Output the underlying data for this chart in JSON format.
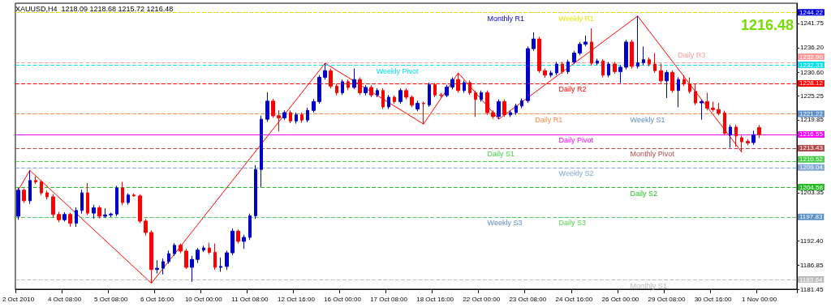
{
  "chart_data": {
    "type": "candlestick",
    "title": "XAUUSD,H4  1218.09 1218.68 1215.72 1216.48",
    "annotations": [
      "1216.48",
      "1244.22",
      "1232.90",
      "1232.33",
      "1228.12",
      "1221.22",
      "1216.55",
      "1213.43",
      "1210.52",
      "1209.04",
      "1204.58",
      "1197.83",
      "1183.64"
    ],
    "categories": [
      "2 Oct 2010",
      null,
      null,
      null,
      null,
      null,
      null,
      null,
      "4 Oct 08:00",
      null,
      null,
      null,
      null,
      null,
      null,
      null,
      "5 Oct 08:00",
      null,
      null,
      null,
      null,
      null,
      null,
      null,
      "6 Oct 16:00",
      null,
      null,
      null,
      null,
      null,
      null,
      null,
      "10 Oct 00:00",
      null,
      null,
      null,
      null,
      null,
      null,
      null,
      "11 Oct 08:00",
      null,
      null,
      null,
      null,
      null,
      null,
      null,
      "12 Oct 16:00",
      null,
      null,
      null,
      null,
      null,
      null,
      null,
      "16 Oct 00:00",
      null,
      null,
      null,
      null,
      null,
      null,
      null,
      "17 Oct 08:00",
      null,
      null,
      null,
      null,
      null,
      null,
      null,
      "18 Oct 16:00",
      null,
      null,
      null,
      null,
      null,
      null,
      null,
      "22 Oct 00:00",
      null,
      null,
      null,
      null,
      null,
      null,
      null,
      "23 Oct 08:00",
      null,
      null,
      null,
      null,
      null,
      null,
      null,
      "24 Oct 16:00",
      null,
      null,
      null,
      null,
      null,
      null,
      null,
      "26 Oct 00:00",
      null,
      null,
      null,
      null,
      null,
      null,
      null,
      "29 Oct 08:00",
      null,
      null,
      null,
      null,
      null,
      null,
      null,
      "30 Oct 16:00",
      null,
      null,
      null,
      null,
      null,
      null,
      null,
      "1 Nov 00:00",
      null,
      null,
      null,
      null,
      null,
      null
    ],
    "ylim": [
      1181.45,
      1246.3
    ],
    "yticks": [
      1181.45,
      1186.85,
      {
        "value": 1192.4,
        "label": "1192.40"
      },
      1203.35,
      1219.85,
      1225.25,
      {
        "value": 1230.6,
        "label": "1230.60"
      },
      {
        "value": 1236.2,
        "label": "1236.20"
      },
      1241.75
    ],
    "grid": false,
    "series": [
      {
        "ohlc": [
          [
            1198,
            1204.4,
            1197.2,
            1203.9
          ],
          [
            1203.9,
            1204.3,
            1201,
            1201.5
          ],
          [
            1201.5,
            1208.4,
            1200.8,
            1206.1
          ],
          [
            1206.1,
            1207,
            1205.3,
            1205.8
          ],
          [
            1205.8,
            1206.2,
            1202.8,
            1203.3
          ],
          [
            1203.3,
            1203.8,
            1201.8,
            1202.4
          ],
          [
            1202.4,
            1203,
            1197.6,
            1198.4
          ],
          [
            1198.4,
            1199,
            1196.6,
            1197.2
          ],
          [
            1197.2,
            1198.9,
            1196.8,
            1198.4
          ],
          [
            1198.4,
            1198.8,
            1195.6,
            1196.4
          ],
          [
            1196.4,
            1200,
            1195.6,
            1199.3
          ],
          [
            1199.3,
            1204,
            1198.6,
            1203.3
          ],
          [
            1203.3,
            1205.5,
            1198.2,
            1198.7
          ],
          [
            1198.7,
            1200.6,
            1197.4,
            1199.9
          ],
          [
            1199.9,
            1200.4,
            1197.5,
            1198
          ],
          [
            1198,
            1199.8,
            1197.6,
            1198.3
          ],
          [
            1198.3,
            1198.8,
            1197.8,
            1198.5
          ],
          [
            1198.5,
            1204.9,
            1198,
            1204.4
          ],
          [
            1204.4,
            1205.8,
            1200.5,
            1201.1
          ],
          [
            1201.1,
            1203.2,
            1200.6,
            1202.8
          ],
          [
            1202.8,
            1203.2,
            1202.4,
            1202.6
          ],
          [
            1202.6,
            1203,
            1196.4,
            1196.9
          ],
          [
            1196.9,
            1197.4,
            1193.6,
            1194.3
          ],
          [
            1194.3,
            1194.8,
            1182.8,
            1185.9
          ],
          [
            1185.9,
            1188,
            1185,
            1186.2
          ],
          [
            1186.2,
            1188.4,
            1184.8,
            1187.7
          ],
          [
            1187.7,
            1190.2,
            1187.2,
            1189.5
          ],
          [
            1189.5,
            1191.9,
            1189,
            1191.4
          ],
          [
            1191.4,
            1191.8,
            1189.6,
            1190.1
          ],
          [
            1190.1,
            1190.6,
            1186,
            1186.4
          ],
          [
            1186.4,
            1189,
            1183.1,
            1188.2
          ],
          [
            1188.2,
            1190.8,
            1187.4,
            1190.3
          ],
          [
            1190.3,
            1191.3,
            1189.9,
            1190.8
          ],
          [
            1190.8,
            1192,
            1189.4,
            1189.8
          ],
          [
            1189.8,
            1191.8,
            1185.8,
            1186.4
          ],
          [
            1186.4,
            1188.6,
            1185.4,
            1186.6
          ],
          [
            1186.6,
            1190.2,
            1185.8,
            1189.7
          ],
          [
            1189.7,
            1195.2,
            1189.2,
            1194.6
          ],
          [
            1194.6,
            1195,
            1191.8,
            1192.3
          ],
          [
            1192.3,
            1193.8,
            1190.6,
            1193.2
          ],
          [
            1193.2,
            1198.6,
            1192.6,
            1198.1
          ],
          [
            1198.1,
            1209.6,
            1197.4,
            1208.6
          ],
          [
            1208.6,
            1220.8,
            1204.6,
            1220
          ],
          [
            1220,
            1226.1,
            1219.4,
            1224.1
          ],
          [
            1224.1,
            1224.6,
            1220.3,
            1220.8
          ],
          [
            1220.8,
            1222,
            1217.2,
            1220.3
          ],
          [
            1220.3,
            1222,
            1219.8,
            1221.5
          ],
          [
            1221.5,
            1222,
            1219.1,
            1219.6
          ],
          [
            1219.6,
            1221.5,
            1219,
            1221
          ],
          [
            1221,
            1221.5,
            1219.2,
            1219.8
          ],
          [
            1219.8,
            1222.6,
            1219.3,
            1222
          ],
          [
            1222,
            1224.6,
            1221.5,
            1224
          ],
          [
            1224,
            1230,
            1223.5,
            1229.5
          ],
          [
            1229.5,
            1232.7,
            1229,
            1231
          ],
          [
            1231,
            1231.5,
            1227,
            1227.5
          ],
          [
            1227.5,
            1228,
            1225.4,
            1226
          ],
          [
            1226,
            1229,
            1225.5,
            1228.5
          ],
          [
            1228.5,
            1229,
            1226.6,
            1227.2
          ],
          [
            1227.2,
            1231.5,
            1226.8,
            1229
          ],
          [
            1229,
            1229.5,
            1225.5,
            1226
          ],
          [
            1226,
            1227.7,
            1225.4,
            1227.2
          ],
          [
            1227.2,
            1227.7,
            1225,
            1225.5
          ],
          [
            1225.5,
            1227,
            1225,
            1226.5
          ],
          [
            1226.5,
            1227,
            1222.3,
            1222.8
          ],
          [
            1222.8,
            1225.5,
            1222.3,
            1225
          ],
          [
            1225,
            1225.4,
            1223.5,
            1224
          ],
          [
            1224,
            1227,
            1223.5,
            1226.5
          ],
          [
            1226.5,
            1227,
            1224.5,
            1225
          ],
          [
            1225,
            1225.4,
            1222.7,
            1223.2
          ],
          [
            1222.3,
            1224.2,
            1221.8,
            1223.6
          ],
          [
            1223.6,
            1224,
            1218.9,
            1223.5
          ],
          [
            1223.2,
            1228.3,
            1222.8,
            1227.8
          ],
          [
            1227.8,
            1228.2,
            1225,
            1225.5
          ],
          [
            1225.5,
            1226,
            1224.9,
            1225.4
          ],
          [
            1225.4,
            1227.8,
            1225,
            1227.3
          ],
          [
            1227.3,
            1229.5,
            1226.8,
            1229
          ],
          [
            1229,
            1230.5,
            1226,
            1226.5
          ],
          [
            1226.5,
            1228.8,
            1226,
            1228.3
          ],
          [
            1228.3,
            1228.8,
            1225.5,
            1226
          ],
          [
            1226,
            1226.5,
            1220.5,
            1224.5
          ],
          [
            1224.5,
            1226.5,
            1224,
            1226
          ],
          [
            1226,
            1226.5,
            1221,
            1221.5
          ],
          [
            1221.5,
            1222,
            1220.1,
            1220.6
          ],
          [
            1220.6,
            1224.5,
            1220,
            1224
          ],
          [
            1224,
            1224.5,
            1220.5,
            1221
          ],
          [
            1221,
            1222,
            1220.5,
            1221.5
          ],
          [
            1221.5,
            1223.5,
            1221,
            1223
          ],
          [
            1223,
            1224.7,
            1222.5,
            1224.2
          ],
          [
            1224.2,
            1236.5,
            1223.7,
            1236
          ],
          [
            1236,
            1239.7,
            1235.5,
            1238.2
          ],
          [
            1238.2,
            1238.7,
            1230.5,
            1231
          ],
          [
            1231,
            1231.5,
            1229.4,
            1230
          ],
          [
            1230,
            1231,
            1229.5,
            1230.5
          ],
          [
            1230.5,
            1233,
            1230,
            1232.5
          ],
          [
            1232.5,
            1233,
            1230.3,
            1230.8
          ],
          [
            1230.8,
            1233.5,
            1230.3,
            1233
          ],
          [
            1233,
            1235.5,
            1232.5,
            1235
          ],
          [
            1235,
            1237.5,
            1234.5,
            1237
          ],
          [
            1237,
            1239,
            1236.5,
            1237.5
          ],
          [
            1237.5,
            1240.6,
            1232.2,
            1232.7
          ],
          [
            1232.7,
            1233.7,
            1232.3,
            1233.2
          ],
          [
            1233.2,
            1233.6,
            1229.5,
            1230
          ],
          [
            1230,
            1233,
            1229.5,
            1232.5
          ],
          [
            1232.5,
            1233,
            1230.3,
            1230.8
          ],
          [
            1230.8,
            1232.3,
            1228.2,
            1231.8
          ],
          [
            1231.8,
            1238,
            1231.3,
            1237.5
          ],
          [
            1237.5,
            1238,
            1231.5,
            1232
          ],
          [
            1232,
            1243.4,
            1231.5,
            1232.8
          ],
          [
            1232.8,
            1236.5,
            1232.3,
            1233.5
          ],
          [
            1233.5,
            1234,
            1232,
            1232.5
          ],
          [
            1232.5,
            1235,
            1230.5,
            1231
          ],
          [
            1231,
            1232.6,
            1228.2,
            1228.7
          ],
          [
            1228.7,
            1231.1,
            1224.8,
            1230.6
          ],
          [
            1230.6,
            1231.1,
            1226,
            1226.5
          ],
          [
            1226.5,
            1229.5,
            1222.7,
            1229
          ],
          [
            1229,
            1230,
            1227.5,
            1228
          ],
          [
            1228,
            1229.5,
            1225.8,
            1226.3
          ],
          [
            1226.3,
            1227.9,
            1223.2,
            1223.7
          ],
          [
            1223.7,
            1224.4,
            1219.9,
            1224
          ],
          [
            1224,
            1226,
            1222,
            1222.5
          ],
          [
            1222.5,
            1224,
            1221.7,
            1222.2
          ],
          [
            1222.2,
            1223.7,
            1220.9,
            1221.4
          ],
          [
            1221.4,
            1221.9,
            1216.3,
            1216.8
          ],
          [
            1216.4,
            1218.7,
            1213.5,
            1218.2
          ],
          [
            1218.2,
            1218.7,
            1213.8,
            1216.2
          ],
          [
            1215.8,
            1216.3,
            1212.5,
            1214.9
          ],
          [
            1215,
            1215.5,
            1214.1,
            1214.6
          ],
          [
            1214.7,
            1217.4,
            1214.2,
            1216.5
          ],
          [
            1218.09,
            1218.68,
            1215.72,
            1216.48
          ],
          null,
          null,
          null,
          null,
          null,
          null
        ],
        "colors": [
          "#0000cc",
          "#ff0000",
          "#0000cc",
          "#ff0000",
          "#ff0000",
          "#ff0000",
          "#ff0000",
          "#ff0000",
          "#0000cc",
          "#ff0000",
          "#0000cc",
          "#0000cc",
          "#ff0000",
          "#0000cc",
          "#ff0000",
          "#0000cc",
          "#0000cc",
          "#0000cc",
          "#ff0000",
          "#0000cc",
          "#ff0000",
          "#ff0000",
          "#ff0000",
          "#ff0000",
          "#0000cc",
          "#0000cc",
          "#0000cc",
          "#0000cc",
          "#ff0000",
          "#ff0000",
          "#0000cc",
          "#0000cc",
          "#0000cc",
          "#ff0000",
          "#ff0000",
          "#0000cc",
          "#0000cc",
          "#0000cc",
          "#ff0000",
          "#0000cc",
          "#0000cc",
          "#0000cc",
          "#0000cc",
          "#0000cc",
          "#ff0000",
          "#ff0000",
          "#0000cc",
          "#ff0000",
          "#0000cc",
          "#ff0000",
          "#0000cc",
          "#0000cc",
          "#0000cc",
          "#0000cc",
          "#ff0000",
          "#ff0000",
          "#0000cc",
          "#ff0000",
          "#0000cc",
          "#ff0000",
          "#0000cc",
          "#ff0000",
          "#0000cc",
          "#ff0000",
          "#0000cc",
          "#ff0000",
          "#0000cc",
          "#ff0000",
          "#ff0000",
          "#0000cc",
          "#ff0000",
          "#0000cc",
          "#ff0000",
          "#ff0000",
          "#0000cc",
          "#0000cc",
          "#ff0000",
          "#0000cc",
          "#ff0000",
          "#ff0000",
          "#0000cc",
          "#ff0000",
          "#ff0000",
          "#0000cc",
          "#ff0000",
          "#0000cc",
          "#0000cc",
          "#0000cc",
          "#0000cc",
          "#0000cc",
          "#ff0000",
          "#ff0000",
          "#0000cc",
          "#0000cc",
          "#ff0000",
          "#0000cc",
          "#0000cc",
          "#0000cc",
          "#0000cc",
          "#ff0000",
          "#0000cc",
          "#ff0000",
          "#0000cc",
          "#ff0000",
          "#0000cc",
          "#0000cc",
          "#ff0000",
          "#0000cc",
          "#0000cc",
          "#ff0000",
          "#ff0000",
          "#ff0000",
          "#0000cc",
          "#ff0000",
          "#0000cc",
          "#ff0000",
          "#ff0000",
          "#ff0000",
          "#0000cc",
          "#ff0000",
          "#ff0000",
          "#ff0000",
          "#ff0000",
          "#0000cc",
          "#ff0000",
          "#ff0000",
          "#ff0000",
          "#0000cc",
          "#ff0000",
          null,
          null,
          null,
          null,
          null,
          null
        ]
      },
      {
        "type": "line",
        "color": "#ff0000",
        "values": [
          1203.9,
          null,
          1208.4,
          null,
          null,
          null,
          null,
          null,
          null,
          null,
          null,
          null,
          null,
          null,
          null,
          null,
          null,
          null,
          null,
          null,
          null,
          null,
          null,
          1182.8,
          null,
          null,
          null,
          null,
          null,
          null,
          null,
          null,
          null,
          null,
          null,
          null,
          null,
          null,
          null,
          null,
          null,
          null,
          null,
          null,
          null,
          null,
          null,
          null,
          null,
          null,
          null,
          null,
          null,
          1232.7,
          null,
          null,
          null,
          null,
          null,
          null,
          null,
          null,
          null,
          null,
          null,
          null,
          null,
          null,
          null,
          null,
          1218.9,
          null,
          null,
          null,
          null,
          null,
          1230.5,
          null,
          null,
          null,
          null,
          null,
          null,
          1220,
          null,
          null,
          null,
          null,
          null,
          null,
          null,
          null,
          null,
          null,
          null,
          null,
          null,
          null,
          null,
          null,
          null,
          null,
          null,
          null,
          null,
          null,
          null,
          1243.4,
          null,
          null,
          null,
          null,
          null,
          null,
          null,
          null,
          null,
          null,
          null,
          null,
          null,
          null,
          null,
          null,
          null,
          1212.5,
          null,
          null,
          null,
          null,
          null,
          null,
          null,
          null,
          null
        ]
      }
    ],
    "ref_lines": [
      {
        "axis": "y",
        "value": 1244.22,
        "label": "Monthly R1",
        "color": "#0000dd",
        "line_style": "dashed"
      },
      {
        "axis": "y",
        "value": 1244.22,
        "label": "Weekly R1",
        "color": "#e6e600",
        "line_style": "dashed"
      },
      {
        "axis": "y",
        "value": 1232.9,
        "label": "Daily R3",
        "color": "#ff9a9a",
        "line_style": "dashed"
      },
      {
        "axis": "y",
        "value": 1232.33,
        "label": "Weekly Pivot",
        "color": "#00e0f0",
        "line_style": "dashed"
      },
      {
        "axis": "y",
        "value": 1228.12,
        "label": "Daily R2",
        "color": "#ff0000",
        "line_style": "dashed"
      },
      {
        "axis": "y",
        "value": 1221.22,
        "label": "Weekly S1",
        "color": "#5b8ec7",
        "line_style": "dashed"
      },
      {
        "axis": "y",
        "value": 1221.22,
        "label": "Daily R1",
        "color": "#ff8c40",
        "line_style": "dashed"
      },
      {
        "axis": "y",
        "value": 1216.55,
        "label": "Daily Pivot",
        "color": "#ff00ff",
        "line_style": "solid"
      },
      {
        "axis": "y",
        "value": 1213.43,
        "label": "Monthly Pivot",
        "color": "#b04848",
        "line_style": "dashed"
      },
      {
        "axis": "y",
        "value": 1210.52,
        "label": "Daily S1",
        "color": "#44cc44",
        "line_style": "dashed"
      },
      {
        "axis": "y",
        "value": 1209.04,
        "label": "Weekly S2",
        "color": "#7fa6d6",
        "line_style": "dashed"
      },
      {
        "axis": "y",
        "value": 1204.58,
        "label": "Daily S2",
        "color": "#22bb22",
        "line_style": "dashed"
      },
      {
        "axis": "y",
        "value": 1197.83,
        "label": "Weekly S3",
        "color": "#5b8ec7",
        "line_style": "dashed"
      },
      {
        "axis": "y",
        "value": 1197.83,
        "label": "Daily S3",
        "color": "#55cc55",
        "line_style": "dashed"
      },
      {
        "axis": "y",
        "value": 1183.64,
        "label": "Monthly S1",
        "color": "#bbbbbb",
        "line_style": "dashed"
      }
    ]
  }
}
